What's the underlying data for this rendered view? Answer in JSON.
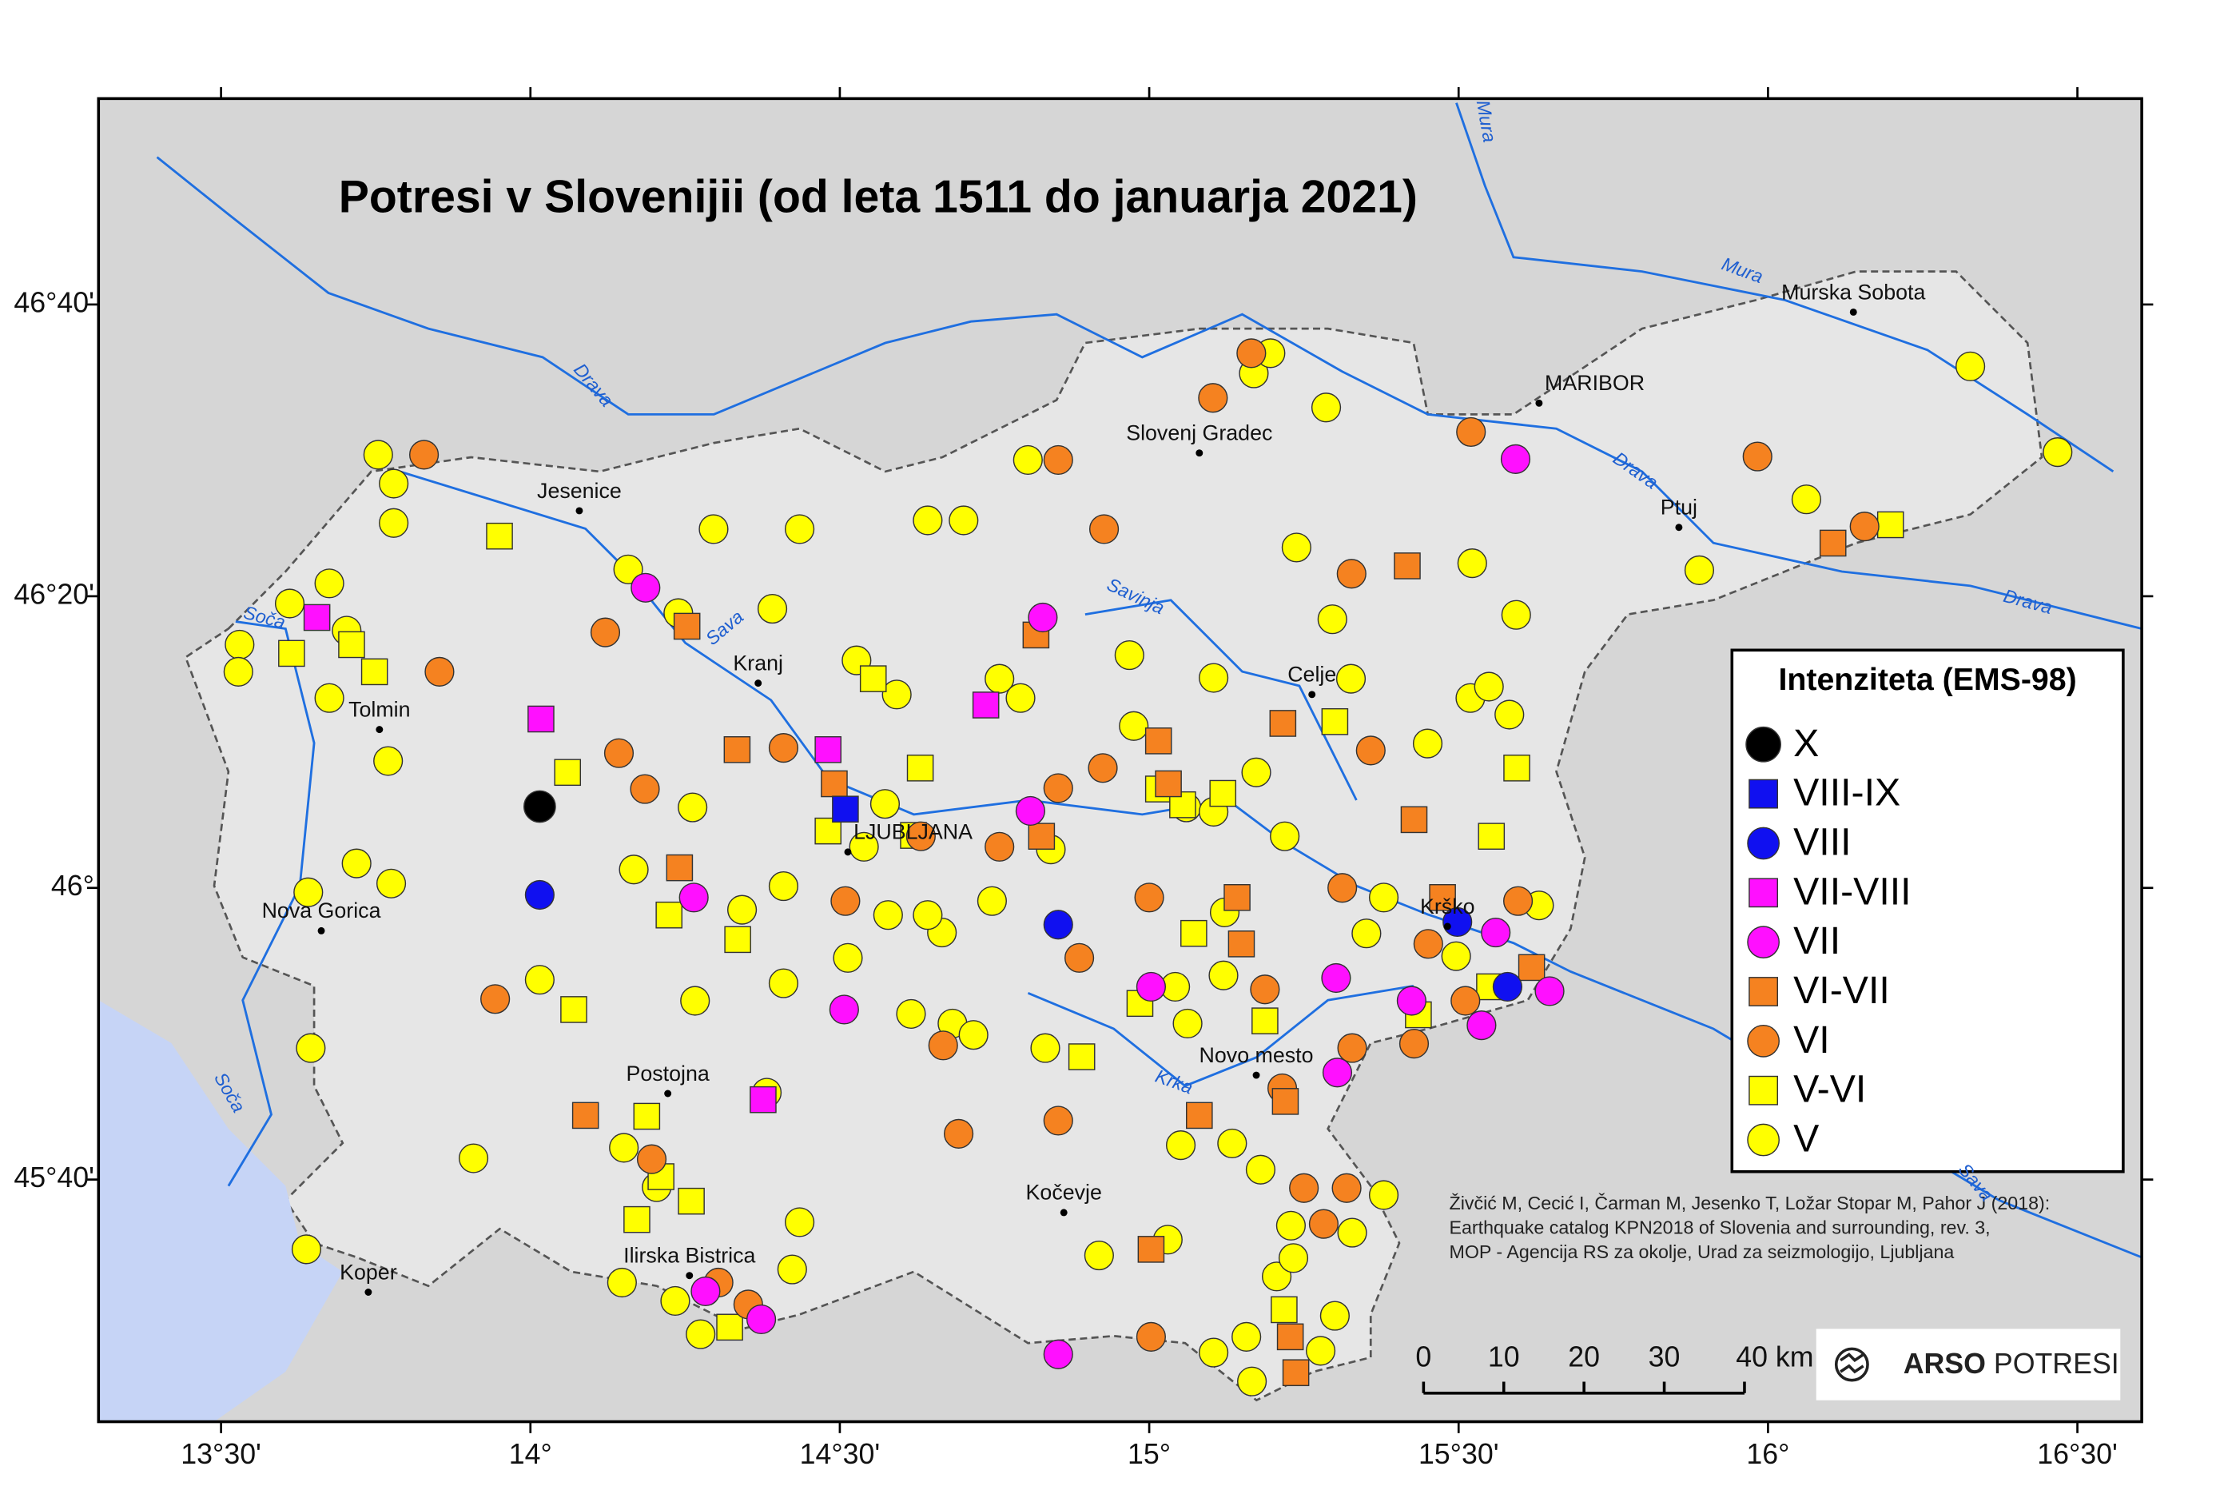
{
  "map": {
    "title": "Potresi v Slovenijii (od leta 1511 do januarja 2021)",
    "xlim": [
      13.302,
      16.604
    ],
    "ylim": [
      45.39,
      46.902
    ],
    "xticks": [
      {
        "value": 13.5,
        "label": "13°30'"
      },
      {
        "value": 14,
        "label": "14°"
      },
      {
        "value": 14.5,
        "label": "14°30'"
      },
      {
        "value": 15,
        "label": "15°"
      },
      {
        "value": 15.5,
        "label": "15°30'"
      },
      {
        "value": 16,
        "label": "16°"
      },
      {
        "value": 16.5,
        "label": "16°30'"
      }
    ],
    "yticks": [
      {
        "value": 45.6667,
        "label": "45°40'"
      },
      {
        "value": 46,
        "label": "46°"
      },
      {
        "value": 46.3333,
        "label": "46°20'"
      },
      {
        "value": 46.6667,
        "label": "46°40'"
      }
    ],
    "legend": {
      "title": "Intenziteta (EMS-98)"
    },
    "series": [
      {
        "name": "X",
        "color": "#000000",
        "shape": "circle",
        "lon": [
          14.015
        ],
        "lat": [
          46.093
        ]
      },
      {
        "name": "VIII-IX",
        "color": "#1010f0",
        "shape": "square",
        "lon": [
          14.509
        ],
        "lat": [
          46.09
        ]
      },
      {
        "name": "VIII",
        "color": "#1010f0",
        "shape": "circle",
        "lon": [
          14.015,
          14.853,
          15.498,
          15.579
        ],
        "lat": [
          45.992,
          45.958,
          45.961,
          45.887
        ]
      },
      {
        "name": "VII-VIII",
        "color": "#ff10ff",
        "shape": "square",
        "lon": [
          13.655,
          14.017,
          14.481,
          14.736,
          14.376
        ],
        "lat": [
          46.309,
          46.193,
          46.158,
          46.209,
          45.758
        ]
      },
      {
        "name": "VII",
        "color": "#ff10ff",
        "shape": "circle",
        "lon": [
          14.186,
          14.828,
          15.592,
          14.808,
          14.264,
          14.507,
          15.003,
          15.302,
          15.304,
          15.56,
          15.647,
          15.537,
          14.283,
          14.373,
          14.853,
          15.424
        ],
        "lat": [
          46.343,
          46.309,
          46.49,
          46.088,
          45.989,
          45.861,
          45.887,
          45.897,
          45.789,
          45.949,
          45.882,
          45.843,
          45.539,
          45.507,
          45.467,
          45.871
        ]
      },
      {
        "name": "VI-VII",
        "color": "#f58220",
        "shape": "square",
        "lon": [
          14.253,
          14.817,
          14.334,
          14.491,
          14.826,
          15.015,
          15.031,
          15.216,
          15.417,
          16.105,
          15.428,
          15.474,
          15.142,
          15.149,
          14.089,
          14.241,
          15.22,
          15.081,
          15.003,
          15.228,
          15.237,
          15.618
        ],
        "lat": [
          46.299,
          46.289,
          46.158,
          46.119,
          46.059,
          46.168,
          46.119,
          46.188,
          46.368,
          46.394,
          46.078,
          45.989,
          45.989,
          45.936,
          45.74,
          46.023,
          45.756,
          45.74,
          45.587,
          45.487,
          45.446,
          45.909
        ]
      },
      {
        "name": "VI",
        "color": "#f58220",
        "shape": "circle",
        "lon": [
          15.165,
          15.103,
          14.853,
          15.52,
          15.983,
          16.156,
          14.927,
          15.327,
          14.121,
          13.853,
          14.409,
          14.143,
          14.185,
          14.853,
          14.925,
          15.358,
          14.758,
          14.631,
          15.0,
          15.312,
          13.943,
          14.196,
          14.692,
          14.667,
          14.887,
          15.187,
          15.215,
          15.328,
          15.428,
          15.511,
          15.596,
          15.25,
          15.319,
          15.282,
          14.304,
          14.352,
          15.003,
          14.853,
          13.828,
          14.509,
          15.451
        ],
        "lat": [
          46.611,
          46.56,
          46.489,
          46.521,
          46.493,
          46.413,
          46.41,
          46.359,
          46.292,
          46.247,
          46.16,
          46.154,
          46.113,
          46.114,
          46.137,
          46.157,
          46.047,
          46.059,
          45.989,
          46.0,
          45.873,
          45.69,
          45.719,
          45.82,
          45.92,
          45.884,
          45.771,
          45.817,
          45.822,
          45.871,
          45.985,
          45.657,
          45.657,
          45.616,
          45.549,
          45.524,
          45.487,
          45.734,
          46.495,
          45.985,
          45.936
        ]
      },
      {
        "name": "V-VI",
        "color": "#ffff00",
        "shape": "square",
        "lon": [
          13.95,
          13.614,
          13.711,
          13.748,
          14.06,
          14.554,
          14.63,
          14.619,
          14.335,
          14.07,
          14.224,
          14.481,
          15.594,
          15.553,
          15.3,
          15.015,
          15.054,
          15.119,
          15.072,
          14.985,
          15.187,
          14.891,
          14.188,
          14.172,
          14.211,
          14.26,
          14.322,
          15.218,
          16.198,
          15.435,
          15.55
        ],
        "lat": [
          46.402,
          46.268,
          46.278,
          46.247,
          46.132,
          46.239,
          46.137,
          46.06,
          45.941,
          45.861,
          45.969,
          46.065,
          46.137,
          46.059,
          46.19,
          46.113,
          46.095,
          46.108,
          45.948,
          45.868,
          45.848,
          45.807,
          45.739,
          45.621,
          45.67,
          45.642,
          45.498,
          45.518,
          46.415,
          45.855,
          45.887
        ]
      },
      {
        "name": "V",
        "color": "#ffff00",
        "shape": "circle",
        "lon": [
          13.53,
          13.528,
          13.611,
          13.675,
          13.703,
          13.675,
          13.779,
          13.779,
          13.754,
          13.77,
          13.719,
          13.775,
          13.641,
          14.015,
          13.645,
          13.908,
          13.638,
          14.158,
          14.239,
          14.296,
          14.391,
          14.435,
          14.527,
          14.592,
          14.758,
          14.792,
          14.804,
          14.7,
          14.642,
          15.169,
          15.196,
          15.286,
          15.238,
          15.296,
          15.326,
          15.522,
          15.593,
          15.519,
          15.549,
          15.582,
          16.327,
          16.468,
          15.889,
          16.062,
          15.104,
          14.968,
          14.975,
          15.06,
          15.104,
          15.219,
          15.173,
          15.45,
          15.351,
          15.379,
          15.122,
          15.12,
          15.042,
          15.062,
          14.832,
          14.746,
          14.665,
          14.642,
          14.578,
          14.409,
          14.342,
          14.262,
          14.167,
          14.266,
          14.409,
          14.539,
          14.573,
          14.382,
          14.204,
          14.151,
          14.148,
          14.234,
          14.275,
          14.423,
          14.435,
          14.682,
          14.615,
          14.513,
          14.841,
          15.051,
          15.134,
          15.18,
          15.157,
          15.166,
          15.206,
          15.277,
          15.3,
          15.229,
          15.233,
          15.328,
          15.379,
          15.496,
          15.63,
          15.03,
          15.104,
          14.919,
          14.716
        ],
        "lat": [
          46.278,
          46.247,
          46.325,
          46.348,
          46.294,
          46.217,
          46.462,
          46.417,
          46.495,
          46.145,
          46.028,
          46.005,
          45.995,
          45.895,
          45.817,
          45.691,
          45.587,
          46.364,
          46.314,
          46.41,
          46.319,
          46.41,
          46.26,
          46.221,
          46.239,
          46.217,
          46.489,
          46.42,
          46.42,
          46.588,
          46.611,
          46.549,
          46.389,
          46.307,
          46.239,
          46.371,
          46.312,
          46.217,
          46.23,
          46.198,
          46.596,
          46.498,
          46.363,
          46.444,
          46.24,
          46.266,
          46.185,
          46.092,
          46.087,
          46.059,
          46.132,
          46.165,
          45.948,
          45.989,
          45.972,
          45.9,
          45.887,
          45.845,
          45.817,
          45.985,
          45.949,
          45.969,
          45.969,
          46.002,
          45.975,
          46.092,
          46.021,
          45.871,
          45.891,
          46.047,
          46.096,
          45.766,
          45.658,
          45.703,
          45.549,
          45.528,
          45.49,
          45.564,
          45.618,
          45.845,
          45.856,
          45.92,
          46.044,
          45.706,
          45.708,
          45.678,
          45.487,
          45.436,
          45.556,
          45.471,
          45.511,
          45.614,
          45.577,
          45.606,
          45.649,
          45.922,
          45.98,
          45.598,
          45.469,
          45.58,
          45.832
        ]
      }
    ],
    "cities": [
      {
        "name": "Murska Sobota",
        "lon": 16.138,
        "lat": 46.658
      },
      {
        "name": "MARIBOR",
        "lon": 15.63,
        "lat": 46.554
      },
      {
        "name": "Slovenj Gradec",
        "lon": 15.081,
        "lat": 46.497
      },
      {
        "name": "Ptuj",
        "lon": 15.856,
        "lat": 46.412
      },
      {
        "name": "Jesenice",
        "lon": 14.079,
        "lat": 46.431
      },
      {
        "name": "Kranj",
        "lon": 14.368,
        "lat": 46.234
      },
      {
        "name": "Celje",
        "lon": 15.263,
        "lat": 46.221
      },
      {
        "name": "Tolmin",
        "lon": 13.756,
        "lat": 46.181
      },
      {
        "name": "LJUBLJANA",
        "lon": 14.513,
        "lat": 46.041
      },
      {
        "name": "Krško",
        "lon": 15.482,
        "lat": 45.956
      },
      {
        "name": "Nova Gorica",
        "lon": 13.662,
        "lat": 45.951
      },
      {
        "name": "Novo mesto",
        "lon": 15.173,
        "lat": 45.786
      },
      {
        "name": "Postojna",
        "lon": 14.222,
        "lat": 45.765
      },
      {
        "name": "Kočevje",
        "lon": 14.862,
        "lat": 45.629
      },
      {
        "name": "Ilirska Bistrica",
        "lon": 14.257,
        "lat": 45.557
      },
      {
        "name": "Koper",
        "lon": 13.738,
        "lat": 45.538
      }
    ],
    "rivers": [
      "Mura",
      "Mura",
      "Drava",
      "Drava",
      "Drava",
      "Sava",
      "Savinja",
      "Soča",
      "Soča",
      "Krka",
      "Sava"
    ],
    "scalebar": [
      0,
      10,
      20,
      30,
      {
        "value": 40,
        "label": "40 km"
      }
    ],
    "citation": [
      "Živčić M, Cecić I, Čarman M, Jesenko T, Ložar Stopar M, Pahor J (2018):",
      "Earthquake catalog KPN2018 of Slovenia and surrounding, rev. 3,",
      "MOP - Agencija RS za okolje, Urad za seizmologijo, Ljubljana"
    ],
    "logo": {
      "bold": "ARSO",
      "rest": "POTRESI"
    }
  }
}
